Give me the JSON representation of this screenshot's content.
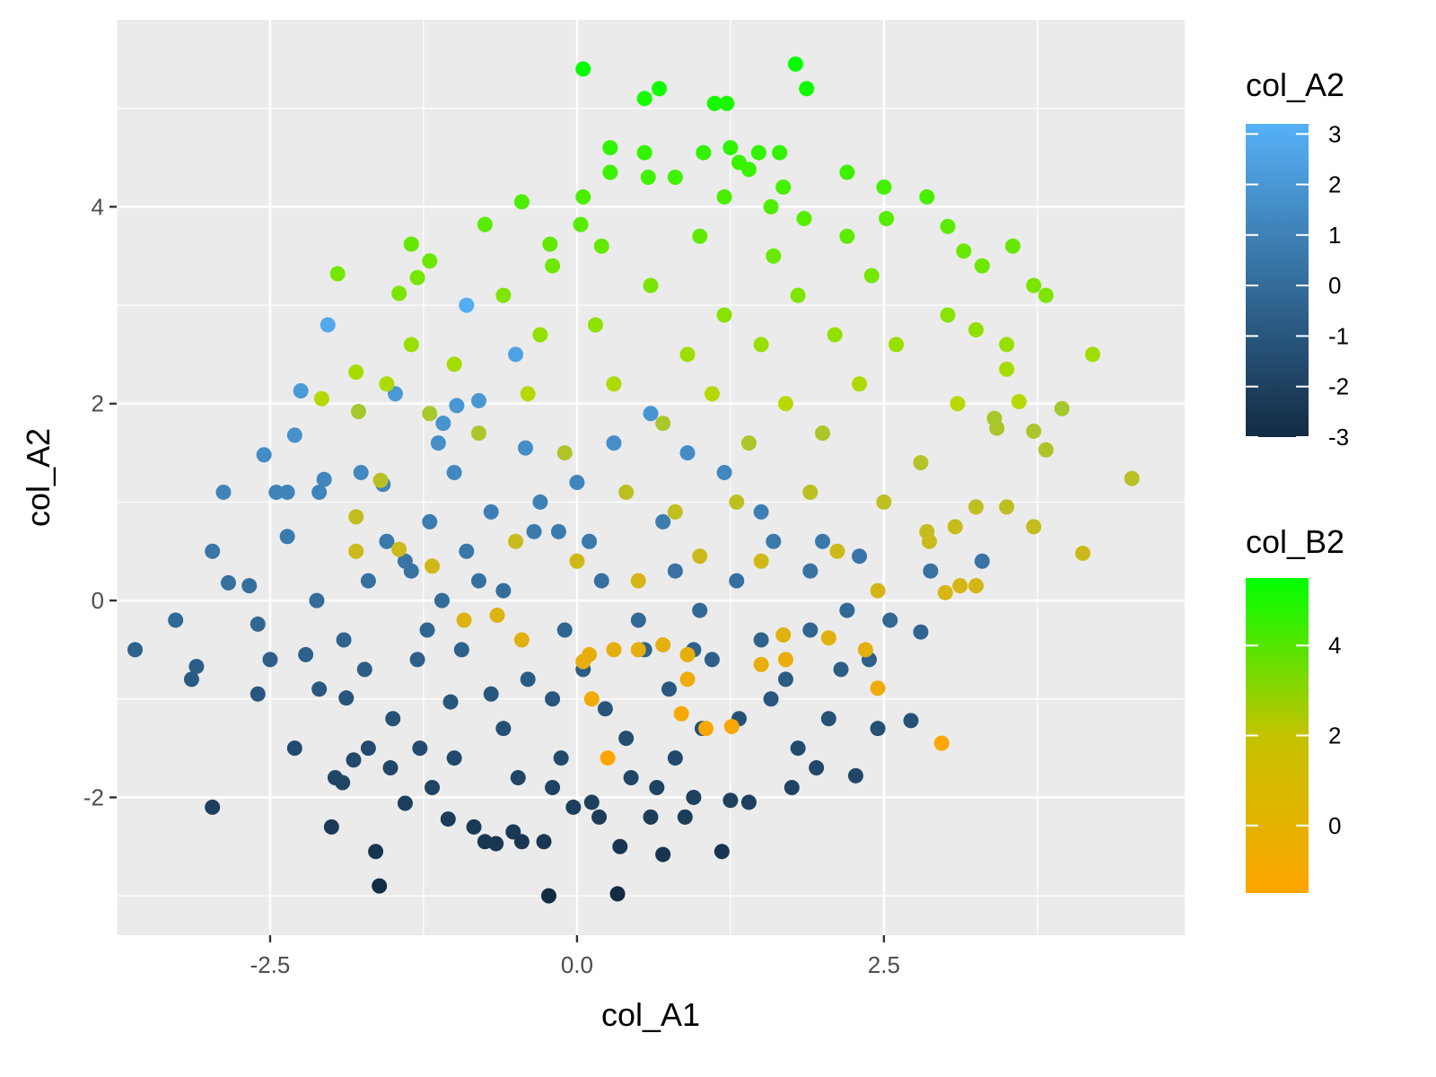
{
  "chart_data": {
    "type": "scatter",
    "xlabel": "col_A1",
    "ylabel": "col_A2",
    "xlim": [
      -3.75,
      4.95
    ],
    "ylim": [
      -3.4,
      5.9
    ],
    "x_ticks": [
      -2.5,
      0.0,
      2.5
    ],
    "x_tick_labels": [
      "-2.5",
      "0.0",
      "2.5"
    ],
    "y_ticks": [
      -2,
      0,
      2,
      4
    ],
    "y_tick_labels": [
      "-2",
      "0",
      "2",
      "4"
    ],
    "grid": true,
    "panel_background": "#EBEBEB",
    "legend_position": "right",
    "series": [
      {
        "name": "col_A2",
        "color_mapped_to": "col_A2",
        "color_low": "#132B43",
        "color_high": "#56B1F7",
        "color_range": [
          -3,
          3.2
        ],
        "points": [
          [
            -3.6,
            -0.5
          ],
          [
            -3.27,
            -0.2
          ],
          [
            -3.14,
            -0.8
          ],
          [
            -3.1,
            -0.67
          ],
          [
            -2.97,
            -2.1
          ],
          [
            -2.97,
            0.5
          ],
          [
            -2.88,
            1.1
          ],
          [
            -2.84,
            0.18
          ],
          [
            -2.67,
            0.15
          ],
          [
            -2.6,
            -0.24
          ],
          [
            -2.6,
            -0.95
          ],
          [
            -2.55,
            1.48
          ],
          [
            -2.5,
            -0.6
          ],
          [
            -2.45,
            1.1
          ],
          [
            -2.36,
            1.1
          ],
          [
            -2.36,
            0.65
          ],
          [
            -2.3,
            1.68
          ],
          [
            -2.25,
            2.13
          ],
          [
            -2.21,
            -0.55
          ],
          [
            -2.12,
            0.0
          ],
          [
            -2.1,
            1.1
          ],
          [
            -2.06,
            1.23
          ],
          [
            -2.03,
            2.8
          ],
          [
            -2.0,
            -2.3
          ],
          [
            -1.97,
            -1.8
          ],
          [
            -1.91,
            -1.85
          ],
          [
            -1.88,
            -0.99
          ],
          [
            -1.82,
            -1.62
          ],
          [
            -1.76,
            1.3
          ],
          [
            -1.73,
            -0.7
          ],
          [
            -1.7,
            -1.5
          ],
          [
            -1.64,
            -2.55
          ],
          [
            -1.61,
            -2.9
          ],
          [
            -1.58,
            1.18
          ],
          [
            -1.55,
            0.6
          ],
          [
            -1.52,
            -1.7
          ],
          [
            -1.48,
            2.1
          ],
          [
            -1.4,
            -2.06
          ],
          [
            -1.35,
            0.3
          ],
          [
            -1.28,
            -1.5
          ],
          [
            -1.22,
            -0.3
          ],
          [
            -1.18,
            -1.9
          ],
          [
            -1.13,
            1.6
          ],
          [
            -1.09,
            1.8
          ],
          [
            -1.05,
            -2.22
          ],
          [
            -1.03,
            -1.03
          ],
          [
            -1.0,
            1.3
          ],
          [
            -0.98,
            1.98
          ],
          [
            -0.94,
            -0.5
          ],
          [
            -0.9,
            3.0
          ],
          [
            -0.84,
            -2.3
          ],
          [
            -0.8,
            2.03
          ],
          [
            -0.75,
            -2.45
          ],
          [
            -0.7,
            -0.95
          ],
          [
            -0.66,
            -2.47
          ],
          [
            -0.6,
            0.1
          ],
          [
            -0.52,
            -2.35
          ],
          [
            -0.48,
            -1.8
          ],
          [
            -0.45,
            -2.45
          ],
          [
            -0.42,
            1.55
          ],
          [
            -0.35,
            0.7
          ],
          [
            -0.27,
            -2.45
          ],
          [
            -0.23,
            -3.0
          ],
          [
            -0.2,
            -1.0
          ],
          [
            -0.13,
            -1.6
          ],
          [
            -0.03,
            -2.1
          ],
          [
            0.05,
            -0.7
          ],
          [
            0.12,
            -2.05
          ],
          [
            0.18,
            -2.2
          ],
          [
            0.23,
            -1.1
          ],
          [
            0.33,
            -2.98
          ],
          [
            0.35,
            -2.5
          ],
          [
            0.44,
            -1.8
          ],
          [
            0.55,
            -0.5
          ],
          [
            0.6,
            -2.2
          ],
          [
            0.65,
            -1.9
          ],
          [
            0.7,
            -2.58
          ],
          [
            0.75,
            -0.9
          ],
          [
            0.8,
            -1.6
          ],
          [
            0.88,
            -2.2
          ],
          [
            0.95,
            -2.0
          ],
          [
            1.02,
            -1.3
          ],
          [
            1.1,
            -0.6
          ],
          [
            1.18,
            -2.55
          ],
          [
            1.25,
            -2.03
          ],
          [
            1.32,
            -1.2
          ],
          [
            1.4,
            -2.05
          ],
          [
            1.5,
            -0.4
          ],
          [
            1.58,
            -1.0
          ],
          [
            1.7,
            -0.8
          ],
          [
            1.75,
            -1.9
          ],
          [
            1.8,
            -1.5
          ],
          [
            1.9,
            -0.3
          ],
          [
            1.95,
            -1.7
          ],
          [
            2.05,
            -1.2
          ],
          [
            2.15,
            -0.7
          ],
          [
            2.2,
            -0.1
          ],
          [
            2.27,
            -1.78
          ],
          [
            2.38,
            -0.6
          ],
          [
            2.45,
            -1.3
          ],
          [
            2.55,
            -0.2
          ],
          [
            2.72,
            -1.22
          ],
          [
            2.8,
            -0.32
          ],
          [
            2.88,
            0.3
          ],
          [
            3.3,
            0.4
          ],
          [
            2.0,
            0.6
          ],
          [
            1.5,
            0.9
          ],
          [
            1.2,
            1.3
          ],
          [
            0.9,
            1.5
          ],
          [
            0.6,
            1.9
          ],
          [
            0.3,
            1.6
          ],
          [
            0.0,
            1.2
          ],
          [
            -0.3,
            1.0
          ],
          [
            -0.5,
            2.5
          ],
          [
            -0.7,
            0.9
          ],
          [
            -0.9,
            0.5
          ],
          [
            -1.1,
            0.0
          ],
          [
            -1.3,
            -0.6
          ],
          [
            -1.5,
            -1.2
          ],
          [
            -1.7,
            0.2
          ],
          [
            -1.9,
            -0.4
          ],
          [
            -2.1,
            -0.9
          ],
          [
            -2.3,
            -1.5
          ],
          [
            -0.1,
            -0.3
          ],
          [
            0.2,
            0.2
          ],
          [
            0.5,
            -0.2
          ],
          [
            0.8,
            0.3
          ],
          [
            1.0,
            -0.1
          ],
          [
            -0.4,
            -0.8
          ],
          [
            -0.6,
            -1.3
          ],
          [
            -0.2,
            -1.9
          ],
          [
            0.1,
            0.6
          ],
          [
            -0.8,
            0.2
          ],
          [
            -1.0,
            -1.6
          ],
          [
            0.4,
            -1.4
          ],
          [
            0.7,
            0.8
          ],
          [
            1.3,
            0.2
          ],
          [
            1.6,
            0.6
          ],
          [
            1.9,
            0.3
          ],
          [
            2.3,
            0.45
          ],
          [
            -1.2,
            0.8
          ],
          [
            -1.4,
            0.4
          ],
          [
            -0.15,
            0.7
          ],
          [
            0.95,
            -0.5
          ]
        ]
      },
      {
        "name": "col_B2",
        "color_mapped_to": "col_B2",
        "color_low": "#FFA500",
        "color_high": "#00FF00",
        "color_range": [
          -1.5,
          5.5
        ],
        "points": [
          [
            0.05,
            5.4
          ],
          [
            1.78,
            5.45
          ],
          [
            1.87,
            5.2
          ],
          [
            0.67,
            5.2
          ],
          [
            0.55,
            5.1
          ],
          [
            1.12,
            5.05
          ],
          [
            1.22,
            5.05
          ],
          [
            1.25,
            4.6
          ],
          [
            1.03,
            4.55
          ],
          [
            0.27,
            4.6
          ],
          [
            0.55,
            4.55
          ],
          [
            1.48,
            4.55
          ],
          [
            1.65,
            4.55
          ],
          [
            1.32,
            4.45
          ],
          [
            0.27,
            4.35
          ],
          [
            1.4,
            4.38
          ],
          [
            2.2,
            4.35
          ],
          [
            0.58,
            4.3
          ],
          [
            0.8,
            4.3
          ],
          [
            1.68,
            4.2
          ],
          [
            2.5,
            4.2
          ],
          [
            2.85,
            4.1
          ],
          [
            -0.45,
            4.05
          ],
          [
            0.05,
            4.1
          ],
          [
            1.2,
            4.1
          ],
          [
            1.58,
            4.0
          ],
          [
            2.52,
            3.88
          ],
          [
            -0.75,
            3.82
          ],
          [
            0.03,
            3.82
          ],
          [
            1.85,
            3.88
          ],
          [
            3.02,
            3.8
          ],
          [
            -1.35,
            3.62
          ],
          [
            -0.22,
            3.62
          ],
          [
            3.15,
            3.55
          ],
          [
            3.55,
            3.6
          ],
          [
            -1.2,
            3.45
          ],
          [
            -1.95,
            3.32
          ],
          [
            3.3,
            3.4
          ],
          [
            -1.3,
            3.28
          ],
          [
            -1.45,
            3.12
          ],
          [
            3.72,
            3.2
          ],
          [
            3.82,
            3.1
          ],
          [
            3.02,
            2.9
          ],
          [
            3.25,
            2.75
          ],
          [
            3.5,
            2.6
          ],
          [
            -1.35,
            2.6
          ],
          [
            -1.0,
            2.4
          ],
          [
            -1.8,
            2.32
          ],
          [
            3.5,
            2.35
          ],
          [
            4.2,
            2.5
          ],
          [
            -2.08,
            2.05
          ],
          [
            -1.55,
            2.2
          ],
          [
            -1.2,
            1.9
          ],
          [
            -1.78,
            1.92
          ],
          [
            3.1,
            2.0
          ],
          [
            3.4,
            1.85
          ],
          [
            3.6,
            2.02
          ],
          [
            3.72,
            1.72
          ],
          [
            3.95,
            1.95
          ],
          [
            3.82,
            1.53
          ],
          [
            -1.6,
            1.22
          ],
          [
            3.42,
            1.75
          ],
          [
            4.52,
            1.24
          ],
          [
            3.25,
            0.95
          ],
          [
            3.5,
            0.95
          ],
          [
            -1.8,
            0.85
          ],
          [
            3.72,
            0.75
          ],
          [
            4.12,
            0.48
          ],
          [
            -1.8,
            0.5
          ],
          [
            -1.45,
            0.52
          ],
          [
            -1.18,
            0.35
          ],
          [
            3.08,
            0.75
          ],
          [
            3.12,
            0.15
          ],
          [
            3.25,
            0.15
          ],
          [
            3.0,
            0.08
          ],
          [
            2.85,
            0.7
          ],
          [
            2.87,
            0.6
          ],
          [
            2.12,
            0.5
          ],
          [
            -0.92,
            -0.2
          ],
          [
            -0.65,
            -0.15
          ],
          [
            -0.45,
            -0.4
          ],
          [
            0.3,
            -0.5
          ],
          [
            0.5,
            -0.5
          ],
          [
            0.7,
            -0.45
          ],
          [
            0.1,
            -0.55
          ],
          [
            0.05,
            -0.62
          ],
          [
            0.9,
            -0.55
          ],
          [
            0.9,
            -0.8
          ],
          [
            0.12,
            -1.0
          ],
          [
            0.85,
            -1.15
          ],
          [
            1.05,
            -1.3
          ],
          [
            1.26,
            -1.28
          ],
          [
            0.25,
            -1.6
          ],
          [
            2.97,
            -1.45
          ],
          [
            2.45,
            -0.89
          ],
          [
            2.35,
            -0.5
          ],
          [
            1.7,
            -0.6
          ],
          [
            1.5,
            -0.65
          ],
          [
            2.05,
            -0.38
          ],
          [
            1.68,
            -0.35
          ],
          [
            2.45,
            0.1
          ],
          [
            0.15,
            2.8
          ],
          [
            0.6,
            3.2
          ],
          [
            0.9,
            2.5
          ],
          [
            1.2,
            2.9
          ],
          [
            1.5,
            2.6
          ],
          [
            1.8,
            3.1
          ],
          [
            2.1,
            2.7
          ],
          [
            2.4,
            3.3
          ],
          [
            0.3,
            2.2
          ],
          [
            0.7,
            1.8
          ],
          [
            1.1,
            2.1
          ],
          [
            1.4,
            1.6
          ],
          [
            1.7,
            2.0
          ],
          [
            2.0,
            1.7
          ],
          [
            2.3,
            2.2
          ],
          [
            -0.3,
            2.7
          ],
          [
            -0.6,
            3.1
          ],
          [
            -0.2,
            3.4
          ],
          [
            0.2,
            3.6
          ],
          [
            1.0,
            3.7
          ],
          [
            1.6,
            3.5
          ],
          [
            2.6,
            2.6
          ],
          [
            2.8,
            1.4
          ],
          [
            -0.1,
            1.5
          ],
          [
            0.4,
            1.1
          ],
          [
            0.8,
            0.9
          ],
          [
            1.3,
            1.0
          ],
          [
            1.9,
            1.1
          ],
          [
            2.5,
            1.0
          ],
          [
            -0.4,
            2.1
          ],
          [
            -0.8,
            1.7
          ],
          [
            0.0,
            0.4
          ],
          [
            0.5,
            0.2
          ],
          [
            1.0,
            0.45
          ],
          [
            1.5,
            0.4
          ],
          [
            -0.5,
            0.6
          ],
          [
            2.2,
            3.7
          ]
        ]
      }
    ],
    "legends": [
      {
        "title": "col_A2",
        "type": "colorbar",
        "color_low": "#132B43",
        "color_high": "#56B1F7",
        "range": [
          -3,
          3.2
        ],
        "ticks": [
          3,
          2,
          1,
          0,
          -1,
          -2,
          -3
        ],
        "tick_labels": [
          "3",
          "2",
          "1",
          "0",
          "-1",
          "-2",
          "-3"
        ]
      },
      {
        "title": "col_B2",
        "type": "colorbar",
        "color_low": "#FFA500",
        "color_high": "#00FF00",
        "range": [
          -1.5,
          5.5
        ],
        "ticks": [
          4,
          2,
          0
        ],
        "tick_labels": [
          "4",
          "2",
          "0"
        ]
      }
    ]
  }
}
